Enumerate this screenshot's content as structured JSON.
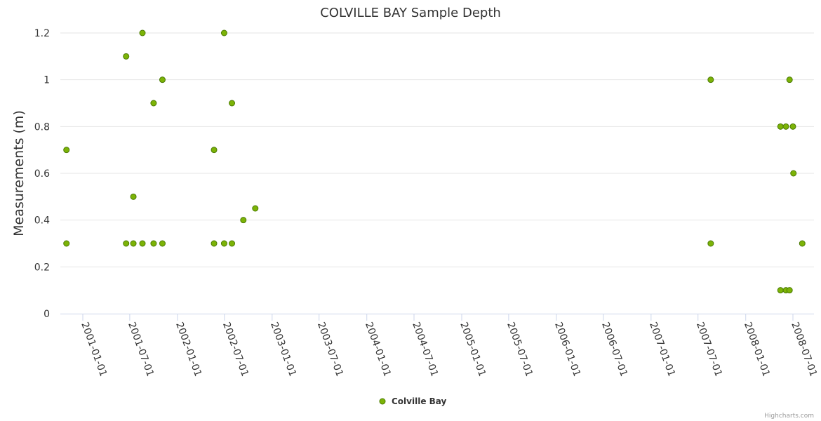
{
  "chart_data": {
    "type": "scatter",
    "title": "COLVILLE BAY Sample Depth",
    "xlabel": "",
    "ylabel": "Measurements (m)",
    "ylim": [
      0,
      1.2
    ],
    "y_ticks": [
      "0",
      "0.2",
      "0.4",
      "0.6",
      "0.8",
      "1",
      "1.2"
    ],
    "x_ticks": [
      "2001-01-01",
      "2001-07-01",
      "2002-01-01",
      "2002-07-01",
      "2003-01-01",
      "2003-07-01",
      "2004-01-01",
      "2004-07-01",
      "2005-01-01",
      "2005-07-01",
      "2006-01-01",
      "2006-07-01",
      "2007-01-01",
      "2007-07-01",
      "2008-01-01",
      "2008-07-01"
    ],
    "grid": "horizontal",
    "legend": "bottom-center",
    "colors": {
      "marker_fill": "#7cb307",
      "marker_stroke": "#4a7a04",
      "grid": "#e6e6e6",
      "axis": "#ccd6eb"
    },
    "series": [
      {
        "name": "Colville Bay",
        "points": [
          {
            "x": "2000-10-30",
            "y": 0.7
          },
          {
            "x": "2000-10-30",
            "y": 0.3
          },
          {
            "x": "2001-06-17",
            "y": 1.1
          },
          {
            "x": "2001-06-17",
            "y": 0.3
          },
          {
            "x": "2001-07-15",
            "y": 0.5
          },
          {
            "x": "2001-07-15",
            "y": 0.3
          },
          {
            "x": "2001-08-19",
            "y": 1.2
          },
          {
            "x": "2001-08-19",
            "y": 0.3
          },
          {
            "x": "2001-10-01",
            "y": 0.9
          },
          {
            "x": "2001-10-01",
            "y": 0.3
          },
          {
            "x": "2001-11-04",
            "y": 1.0
          },
          {
            "x": "2001-11-04",
            "y": 0.3
          },
          {
            "x": "2002-05-22",
            "y": 0.7
          },
          {
            "x": "2002-05-22",
            "y": 0.3
          },
          {
            "x": "2002-06-30",
            "y": 1.2
          },
          {
            "x": "2002-06-30",
            "y": 0.3
          },
          {
            "x": "2002-07-30",
            "y": 0.9
          },
          {
            "x": "2002-07-30",
            "y": 0.3
          },
          {
            "x": "2002-09-12",
            "y": 0.4
          },
          {
            "x": "2002-10-28",
            "y": 0.45
          },
          {
            "x": "2007-08-19",
            "y": 1.0
          },
          {
            "x": "2007-08-19",
            "y": 0.3
          },
          {
            "x": "2008-05-14",
            "y": 0.8
          },
          {
            "x": "2008-05-14",
            "y": 0.1
          },
          {
            "x": "2008-06-04",
            "y": 0.8
          },
          {
            "x": "2008-06-04",
            "y": 0.1
          },
          {
            "x": "2008-06-18",
            "y": 1.0
          },
          {
            "x": "2008-06-18",
            "y": 0.1
          },
          {
            "x": "2008-07-01",
            "y": 0.8
          },
          {
            "x": "2008-07-03",
            "y": 0.6
          },
          {
            "x": "2008-08-06",
            "y": 0.3
          }
        ]
      }
    ]
  },
  "credits": "Highcharts.com"
}
